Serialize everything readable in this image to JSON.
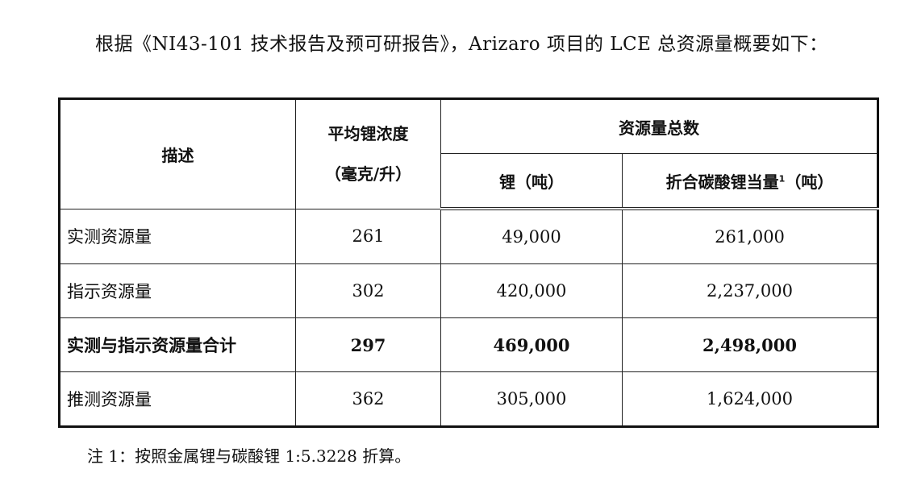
{
  "intro": "根据《NI43-101 技术报告及预可研报告》，Arizaro 项目的 LCE 总资源量概要如下：",
  "table": {
    "headers": {
      "description": "描述",
      "avg_concentration": "平均锂浓度",
      "avg_concentration_unit": "（毫克/升）",
      "total_resources": "资源量总数",
      "lithium": "锂（吨）",
      "lce": "折合碳酸锂当量",
      "lce_sup": "1",
      "lce_unit": "（吨）"
    },
    "rows": [
      {
        "description": "实测资源量",
        "concentration": "261",
        "lithium": "49,000",
        "lce": "261,000"
      },
      {
        "description": "指示资源量",
        "concentration": "302",
        "lithium": "420,000",
        "lce": "2,237,000"
      },
      {
        "description": "实测与指示资源量合计",
        "concentration": "297",
        "lithium": "469,000",
        "lce": "2,498,000"
      },
      {
        "description": "推测资源量",
        "concentration": "362",
        "lithium": "305,000",
        "lce": "1,624,000"
      }
    ]
  },
  "note": "注 1：按照金属锂与碳酸锂 1:5.3228 折算。"
}
